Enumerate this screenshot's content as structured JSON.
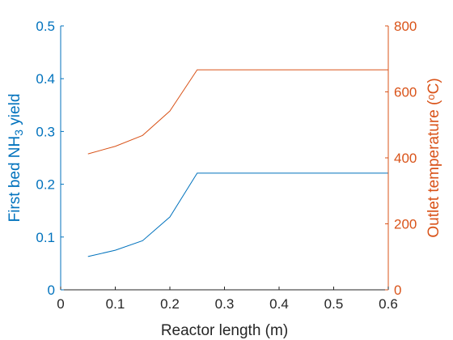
{
  "chart_data": {
    "type": "line",
    "title": "",
    "xlabel": "Reactor length (m)",
    "xlim": [
      0,
      0.6
    ],
    "xticks": [
      "0",
      "0.1",
      "0.2",
      "0.3",
      "0.4",
      "0.5",
      "0.6"
    ],
    "grid": false,
    "legend": "none",
    "left_axis": {
      "label_prefix": "First bed NH",
      "label_sub": "3",
      "label_suffix": " yield",
      "ylim": [
        0,
        0.5
      ],
      "ticks": [
        "0",
        "0.1",
        "0.2",
        "0.3",
        "0.4",
        "0.5"
      ],
      "color": "#0072BD"
    },
    "right_axis": {
      "label_prefix": "Outlet temperature (",
      "label_sup": "o",
      "label_suffix": "C)",
      "ylim": [
        0,
        800
      ],
      "ticks": [
        "0",
        "200",
        "400",
        "600",
        "800"
      ],
      "color": "#D95319"
    },
    "series": [
      {
        "axis": "left",
        "color": "#0072BD",
        "x": [
          0.05,
          0.1,
          0.15,
          0.2,
          0.25,
          0.3,
          0.35,
          0.4,
          0.45,
          0.5,
          0.55,
          0.6
        ],
        "y": [
          0.063,
          0.075,
          0.093,
          0.138,
          0.221,
          0.221,
          0.221,
          0.221,
          0.221,
          0.221,
          0.221,
          0.221
        ]
      },
      {
        "axis": "right",
        "color": "#D95319",
        "x": [
          0.05,
          0.1,
          0.15,
          0.2,
          0.25,
          0.3,
          0.35,
          0.4,
          0.45,
          0.5,
          0.55,
          0.6
        ],
        "y": [
          412,
          435,
          468,
          542,
          667,
          667,
          667,
          667,
          667,
          667,
          667,
          667
        ]
      }
    ]
  }
}
